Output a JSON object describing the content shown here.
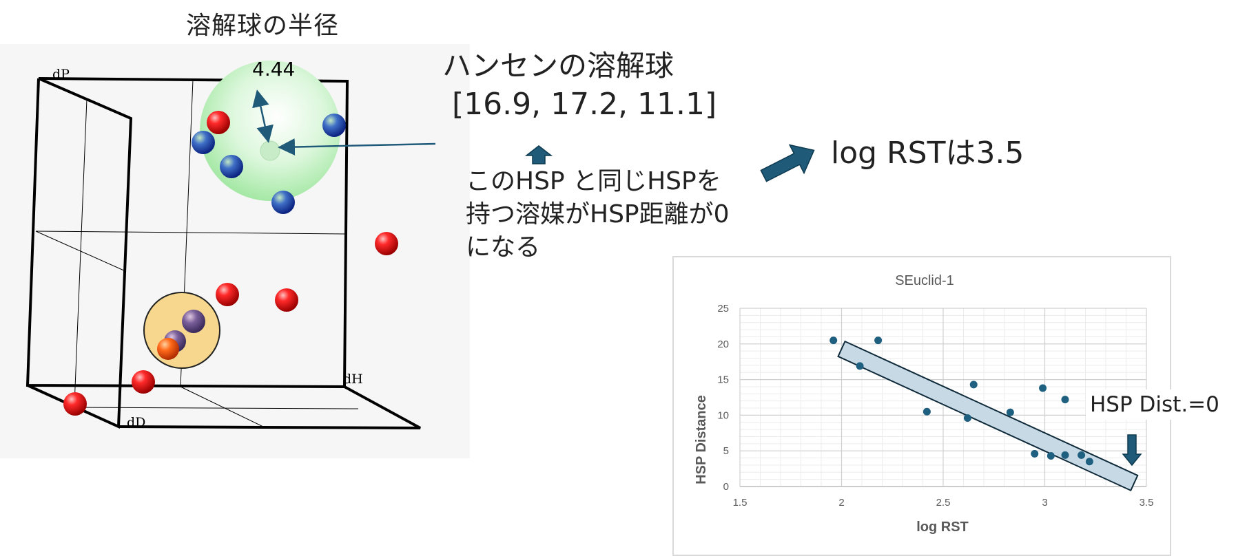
{
  "left_caption": "溶解球の半径",
  "radius_value": "4.44",
  "axes": {
    "dp": "dP",
    "dh": "dH",
    "dd": "dD"
  },
  "sphere_title": "ハンセンの溶解球",
  "sphere_center": "[16.9, 17.2, 11.1]",
  "note_lines": [
    "このHSP と同じHSPを",
    "持つ溶媒がHSP距離が0",
    "になる"
  ],
  "log_rst_note": "log RSTは3.5",
  "callout": "HSP Dist.=0",
  "colors": {
    "accent": "#1f5a78",
    "good_sphere": "#c8f0c8",
    "bad_sphere": "#f5cf7a",
    "point": "#1f5f80"
  },
  "chart_data": {
    "type": "scatter",
    "title": "SEuclid-1",
    "xlabel": "log RST",
    "ylabel": "HSP Distance",
    "xlim": [
      1.5,
      3.5
    ],
    "ylim": [
      0,
      25
    ],
    "xticks": [
      "1.5",
      "2",
      "2.5",
      "3",
      "3.5"
    ],
    "yticks": [
      "0",
      "5",
      "10",
      "15",
      "20",
      "25"
    ],
    "grid": true,
    "points": [
      [
        1.96,
        20.5
      ],
      [
        2.09,
        16.9
      ],
      [
        2.18,
        20.5
      ],
      [
        2.42,
        10.5
      ],
      [
        2.62,
        9.6
      ],
      [
        2.65,
        14.3
      ],
      [
        2.83,
        10.4
      ],
      [
        2.95,
        4.6
      ],
      [
        2.99,
        13.8
      ],
      [
        3.03,
        4.3
      ],
      [
        3.1,
        12.2
      ],
      [
        3.1,
        4.4
      ],
      [
        3.18,
        4.4
      ],
      [
        3.22,
        3.5
      ]
    ],
    "trend_band": {
      "x": [
        2.0,
        3.44
      ],
      "y": [
        19.3,
        0.5
      ]
    }
  }
}
